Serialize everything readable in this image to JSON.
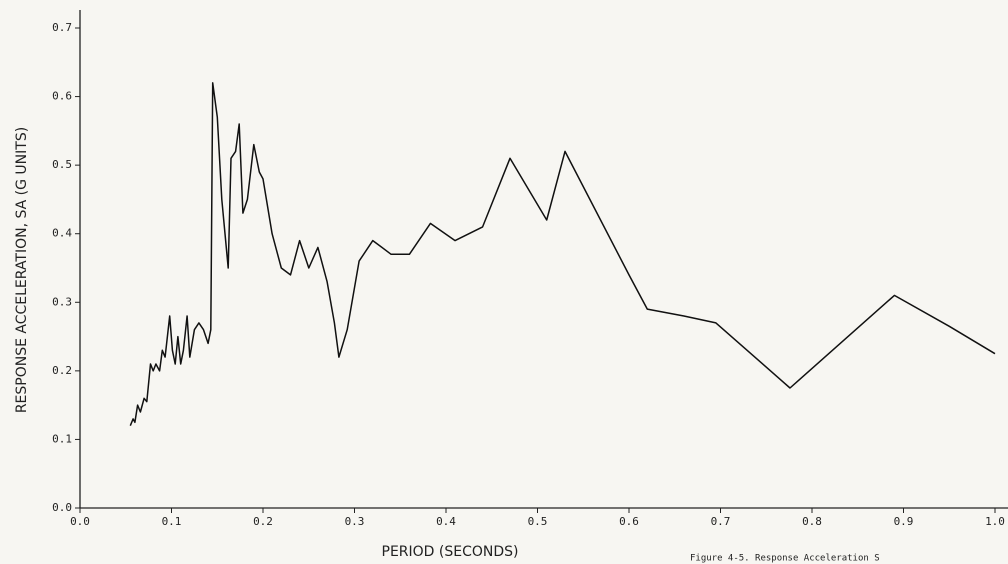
{
  "chart_data": {
    "type": "line",
    "y_label": "RESPONSE ACCELERATION, SA (G UNITS)",
    "x_label": "PERIOD (SECONDS)",
    "annotation": "Figure 4-5.  Response Acceleration S",
    "xlim": [
      0,
      1
    ],
    "ylim": [
      0,
      0.7
    ],
    "xticks": [
      {
        "value": 0,
        "label": "0.0"
      },
      0.1,
      0.2,
      0.3,
      0.4,
      0.5,
      0.6,
      0.7,
      0.8,
      0.9,
      {
        "value": 1,
        "label": "1.0"
      }
    ],
    "yticks": [
      {
        "value": 0,
        "label": "0.0"
      },
      0.1,
      0.2,
      0.3,
      0.4,
      0.5,
      0.6,
      0.7
    ],
    "color": "#111111",
    "x": [
      0.055,
      0.058,
      0.06,
      0.063,
      0.066,
      0.07,
      0.073,
      0.077,
      0.08,
      0.083,
      0.087,
      0.09,
      0.093,
      0.098,
      0.101,
      0.104,
      0.107,
      0.11,
      0.113,
      0.117,
      0.12,
      0.125,
      0.13,
      0.135,
      0.14,
      0.143,
      0.145,
      0.15,
      0.155,
      0.162,
      0.165,
      0.17,
      0.174,
      0.178,
      0.183,
      0.19,
      0.196,
      0.2,
      0.21,
      0.22,
      0.23,
      0.24,
      0.25,
      0.26,
      0.27,
      0.278,
      0.283,
      0.292,
      0.305,
      0.32,
      0.34,
      0.36,
      0.383,
      0.41,
      0.44,
      0.47,
      0.51,
      0.53,
      0.6,
      0.62,
      0.66,
      0.695,
      0.776,
      0.89,
      0.95,
      1.0
    ],
    "values": [
      0.12,
      0.13,
      0.125,
      0.15,
      0.14,
      0.16,
      0.155,
      0.21,
      0.2,
      0.21,
      0.2,
      0.23,
      0.22,
      0.28,
      0.23,
      0.21,
      0.25,
      0.21,
      0.23,
      0.28,
      0.22,
      0.26,
      0.27,
      0.26,
      0.24,
      0.26,
      0.62,
      0.57,
      0.45,
      0.35,
      0.51,
      0.52,
      0.56,
      0.43,
      0.45,
      0.53,
      0.49,
      0.48,
      0.4,
      0.35,
      0.34,
      0.39,
      0.35,
      0.38,
      0.33,
      0.27,
      0.22,
      0.26,
      0.36,
      0.39,
      0.37,
      0.37,
      0.415,
      0.39,
      0.41,
      0.51,
      0.42,
      0.52,
      0.34,
      0.29,
      0.28,
      0.27,
      0.175,
      0.31,
      0.265,
      0.225
    ]
  }
}
